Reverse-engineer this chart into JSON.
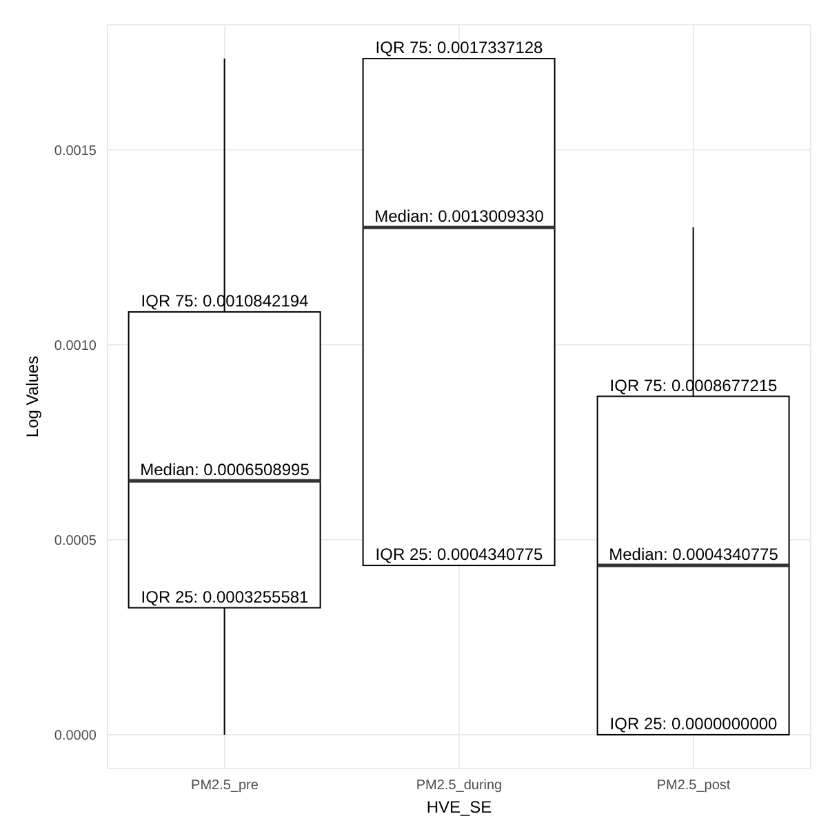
{
  "chart_data": {
    "type": "box",
    "xlabel": "HVE_SE",
    "ylabel": "Log Values",
    "categories": [
      "PM2.5_pre",
      "PM2.5_during",
      "PM2.5_post"
    ],
    "boxes": [
      {
        "low": 0,
        "q1": 0.0003255581,
        "median": 0.0006508995,
        "q3": 0.0010842194,
        "high": 0.0017337128
      },
      {
        "low": 0.0004340775,
        "q1": 0.0004340775,
        "median": 0.001300933,
        "q3": 0.0017337128,
        "high": 0.0017337128
      },
      {
        "low": 0,
        "q1": 0,
        "median": 0.0004340775,
        "q3": 0.0008677215,
        "high": 0.001300933
      }
    ],
    "ylim": [
      -8.67e-05,
      0.0018204
    ],
    "yticks": [
      {
        "value": 0,
        "label": "0.0000"
      },
      {
        "value": 0.0005,
        "label": "0.0005"
      },
      {
        "value": 0.001,
        "label": "0.0010"
      },
      {
        "value": 0.0015,
        "label": "0.0015"
      }
    ],
    "grid": true,
    "annotations": [
      {
        "text": "IQR 75: 0.0010842194",
        "x": "PM2.5_pre",
        "y": 0.0010842194
      },
      {
        "text": "Median: 0.0006508995",
        "x": "PM2.5_pre",
        "y": 0.0006508995
      },
      {
        "text": "IQR 25: 0.0003255581",
        "x": "PM2.5_pre",
        "y": 0.0003255581
      },
      {
        "text": "IQR 75: 0.0017337128",
        "x": "PM2.5_during",
        "y": 0.0017337128
      },
      {
        "text": "Median: 0.0013009330",
        "x": "PM2.5_during",
        "y": 0.001300933
      },
      {
        "text": "IQR 25: 0.0004340775",
        "x": "PM2.5_during",
        "y": 0.0004340775
      },
      {
        "text": "IQR 75: 0.0008677215",
        "x": "PM2.5_post",
        "y": 0.0008677215
      },
      {
        "text": "Median: 0.0004340775",
        "x": "PM2.5_post",
        "y": 0.0004340775
      },
      {
        "text": "IQR 25: 0.0000000000",
        "x": "PM2.5_post",
        "y": 0
      }
    ]
  }
}
